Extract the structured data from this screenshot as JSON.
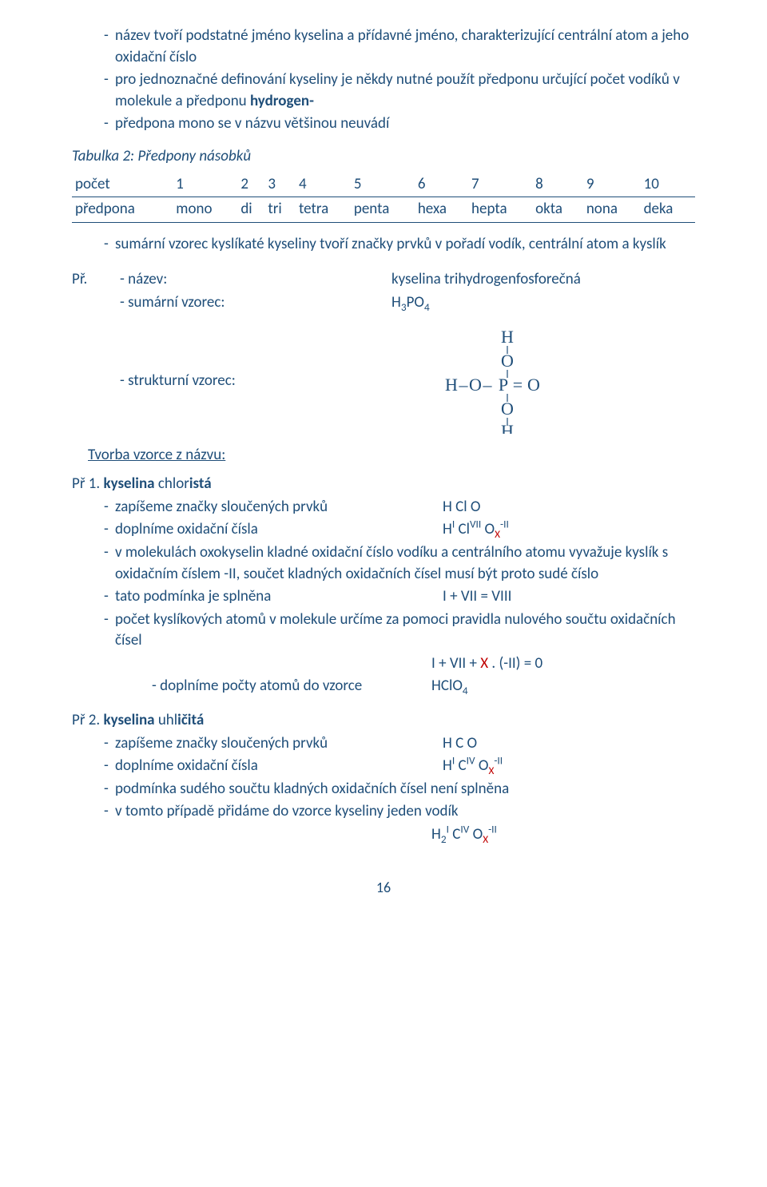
{
  "intro": {
    "li1": "název tvoří podstatné jméno kyselina a přídavné jméno, charakterizující centrální atom a jeho oxidační číslo",
    "li2_a": "pro jednoznačné definování kyseliny je někdy nutné použít předponu určující počet vodíků v molekule a předponu ",
    "li2_b_bold": "hydrogen-",
    "li3": "předpona mono se v názvu většinou neuvádí"
  },
  "table": {
    "caption": "Tabulka 2: Předpony násobků",
    "row1_label": "počet",
    "row2_label": "předpona",
    "counts": [
      "1",
      "2",
      "3",
      "4",
      "5",
      "6",
      "7",
      "8",
      "9",
      "10"
    ],
    "prefixes": [
      "mono",
      "di",
      "tri",
      "tetra",
      "penta",
      "hexa",
      "hepta",
      "okta",
      "nona",
      "deka"
    ]
  },
  "after_table": {
    "li1": "sumární vzorec kyslíkaté kyseliny tvoří značky prvků v pořadí vodík, centrální atom a kyslík"
  },
  "example_pr": {
    "lead": "Př.",
    "r1_label": "- název:",
    "r1_val": "kyselina trihydrogenfosforečná",
    "r2_label": "- sumární vzorec:",
    "r2_val_html": "H<sub>3</sub>PO<sub>4</sub>",
    "r3_label": "- strukturní vzorec:"
  },
  "section_underline": "Tvorba vzorce z názvu:",
  "ex1": {
    "title_a": "Př 1.  ",
    "title_b_bold": "kyselina",
    "title_c": " chlor",
    "title_d_bold": "istá",
    "l1a": "zapíšeme značky sloučených prvků",
    "l1b": "H Cl O",
    "l2a": "doplníme oxidační čísla",
    "l2b_html": "H<sup>I</sup> Cl<sup>VII</sup> O<span class=\"xvar\"><sub>X</sub></span><sup>-II</sup>",
    "l3": "v molekulách oxokyselin kladné oxidační číslo vodíku a centrálního atomu vyvažuje kyslík s oxidačním číslem -II, součet kladných oxidačních čísel musí být proto sudé číslo",
    "l4a": "tato podmínka je splněna",
    "l4b": "I + VII = VIII",
    "l5": "počet kyslíkových atomů v molekule určíme za pomoci pravidla nulového součtu oxidačních čísel",
    "l5_eq_html": "I  + VII + <span class=\"xvar\">X</span> . (-II) = 0",
    "l6a": "- doplníme počty atomů do vzorce",
    "l6b_html": "HClO<sub>4</sub>"
  },
  "ex2": {
    "title_a": "Př 2.  ",
    "title_b_bold": "kyselina",
    "title_c": " uhl",
    "title_d_bold": "ičitá",
    "l1a": "zapíšeme značky sloučených prvků",
    "l1b": "H C O",
    "l2a": "doplníme oxidační čísla",
    "l2b_html": "H<sup>I</sup> C<sup>IV</sup> O<span class=\"xvar\"><sub>X</sub></span><sup>-II</sup>",
    "l3": "podmínka sudého součtu kladných oxidačních čísel není splněna",
    "l4": "v tomto případě přidáme do vzorce kyseliny jeden vodík",
    "l4_eq_html": "H<sub>2</sub><sup>I</sup> C<sup>IV</sup> O<span class=\"xvar\"><sub>X</sub></span><sup>-II</sup>"
  },
  "page_number": "16",
  "svg_struct": {
    "atoms": [
      "H",
      "O",
      "H–O–P=O",
      "O",
      "H"
    ],
    "color": "#1f4e79",
    "font_family": "Times New Roman, serif",
    "font_size": 22
  }
}
